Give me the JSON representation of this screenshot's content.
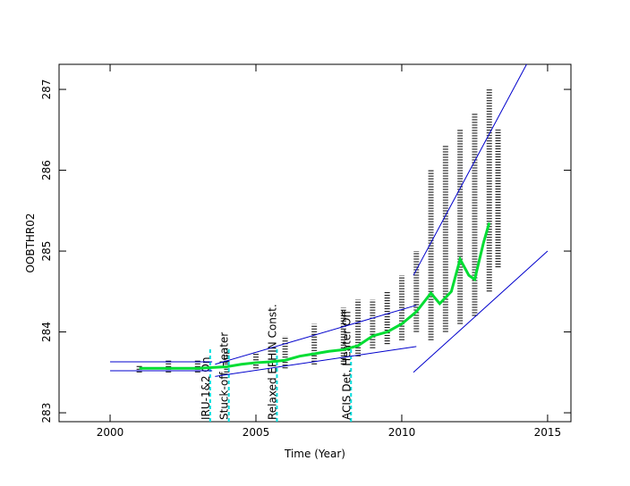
{
  "chart_data": {
    "type": "line",
    "xlabel": "Time (Year)",
    "ylabel": "OOBTHR02",
    "xlim": [
      1998.25,
      2015.8
    ],
    "xticks": [
      2000,
      2005,
      2010,
      2015
    ],
    "ylim": [
      282.89,
      287.31
    ],
    "yticks": [
      283,
      284,
      285,
      286,
      287
    ],
    "ranges": {
      "color": "#000000",
      "x": [
        2001,
        2002,
        2003,
        2004,
        2005,
        2006,
        2007,
        2008,
        2008.5,
        2009,
        2009.5,
        2010,
        2010.5,
        2011,
        2011.5,
        2012,
        2012.5,
        2013,
        2013.3
      ],
      "low": [
        283.5,
        283.5,
        283.5,
        283.5,
        283.55,
        283.55,
        283.6,
        283.6,
        283.7,
        283.8,
        283.85,
        283.9,
        284.0,
        283.9,
        284.0,
        284.1,
        284.2,
        284.5,
        284.8
      ],
      "high": [
        283.6,
        283.65,
        283.65,
        283.75,
        283.75,
        283.95,
        284.1,
        284.3,
        284.4,
        284.4,
        284.5,
        284.7,
        285.0,
        286.0,
        286.3,
        286.5,
        286.7,
        287.0,
        286.5
      ]
    },
    "series": [
      {
        "color": "#00dd33",
        "width": 3,
        "x": [
          2001,
          2002,
          2003,
          2003.5,
          2004,
          2004.5,
          2005,
          2005.5,
          2006,
          2006.5,
          2007,
          2007.5,
          2008,
          2008.5,
          2009,
          2009.5,
          2010,
          2010.5,
          2011,
          2011.3,
          2011.7,
          2012,
          2012.3,
          2012.5,
          2012.8,
          2013
        ],
        "values": [
          283.55,
          283.55,
          283.55,
          283.56,
          283.57,
          283.6,
          283.62,
          283.63,
          283.65,
          283.7,
          283.73,
          283.76,
          283.78,
          283.83,
          283.95,
          284.0,
          284.1,
          284.25,
          284.48,
          284.35,
          284.5,
          284.9,
          284.7,
          284.65,
          285.1,
          285.35
        ]
      },
      {
        "color": "#0000cc",
        "width": 1,
        "x": [
          2000,
          2003.5
        ],
        "values": [
          283.63,
          283.63
        ]
      },
      {
        "color": "#0000cc",
        "width": 1,
        "x": [
          2000,
          2003.5
        ],
        "values": [
          283.52,
          283.52
        ]
      },
      {
        "color": "#0000cc",
        "width": 1,
        "x": [
          2003.6,
          2010.5
        ],
        "values": [
          283.6,
          284.33
        ]
      },
      {
        "color": "#0000cc",
        "width": 1,
        "x": [
          2003.6,
          2010.5
        ],
        "values": [
          283.45,
          283.82
        ]
      },
      {
        "color": "#0000cc",
        "width": 1,
        "x": [
          2010.4,
          2014.28
        ],
        "values": [
          284.7,
          287.31
        ]
      },
      {
        "color": "#0000cc",
        "width": 1,
        "x": [
          2010.4,
          2015
        ],
        "values": [
          283.5,
          285.0
        ]
      }
    ],
    "events": [
      {
        "x": 2003.43,
        "label": "IRU-1&2 On"
      },
      {
        "x": 2004.07,
        "label": "Stuck-off Heater"
      },
      {
        "x": 2005.72,
        "label": "Relaxed EPHIN Const."
      },
      {
        "x": 2008.26,
        "label": "ACIS Det. Heater Off"
      }
    ],
    "event_color": "#00dddd"
  }
}
